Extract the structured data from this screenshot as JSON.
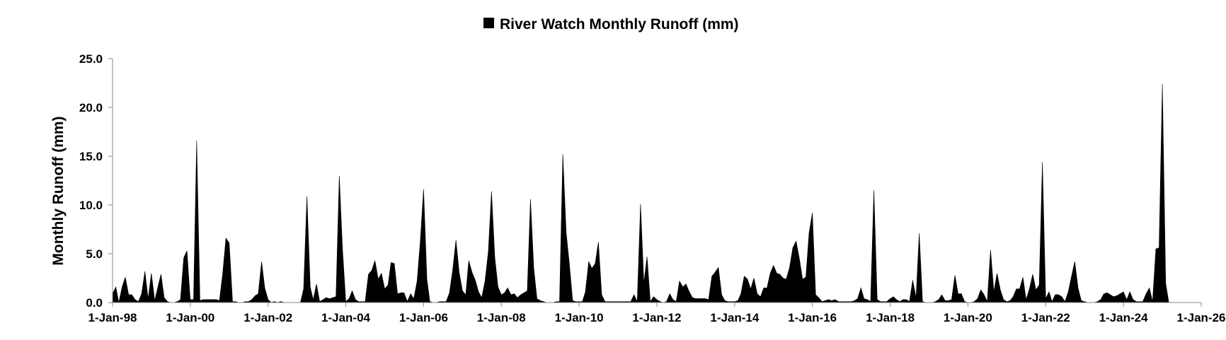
{
  "chart_data": {
    "type": "area",
    "title": "",
    "xlabel": "",
    "ylabel": "Monthly Runoff (mm)",
    "ylim": [
      0,
      25
    ],
    "y_ticks": [
      "0.0",
      "5.0",
      "10.0",
      "15.0",
      "20.0",
      "25.0"
    ],
    "x_range": [
      "1998-01-01",
      "2026-01-01"
    ],
    "x_ticks": [
      "1-Jan-98",
      "1-Jan-00",
      "1-Jan-02",
      "1-Jan-04",
      "1-Jan-06",
      "1-Jan-08",
      "1-Jan-10",
      "1-Jan-12",
      "1-Jan-14",
      "1-Jan-16",
      "1-Jan-18",
      "1-Jan-20",
      "1-Jan-22",
      "1-Jan-24",
      "1-Jan-26"
    ],
    "legend": {
      "position": "top-center"
    },
    "grid": false,
    "series": [
      {
        "name": "River Watch Monthly Runoff (mm)",
        "color": "#000000",
        "start": "1998-01",
        "values": [
          0.9,
          1.6,
          0.0,
          1.6,
          2.6,
          0.8,
          0.8,
          0.3,
          0.1,
          0.9,
          3.2,
          0.4,
          3.0,
          0.2,
          1.5,
          2.9,
          0.5,
          0.1,
          0.0,
          0.0,
          0.1,
          0.3,
          4.6,
          5.3,
          0.3,
          0.3,
          16.6,
          0.2,
          0.3,
          0.3,
          0.3,
          0.3,
          0.3,
          0.2,
          3.0,
          6.6,
          6.1,
          0.1,
          0.1,
          0.0,
          0.0,
          0.1,
          0.1,
          0.3,
          0.7,
          0.9,
          4.2,
          1.5,
          0.3,
          0.0,
          0.1,
          0.0,
          0.1,
          0.0,
          0.0,
          0.0,
          0.0,
          0.0,
          0.0,
          1.4,
          10.9,
          1.6,
          0.3,
          1.9,
          0.1,
          0.3,
          0.5,
          0.4,
          0.5,
          0.6,
          13.0,
          5.5,
          0.1,
          0.4,
          1.2,
          0.3,
          0.1,
          0.1,
          0.1,
          2.9,
          3.3,
          4.3,
          2.4,
          3.0,
          1.4,
          1.8,
          4.1,
          4.0,
          0.9,
          1.0,
          1.0,
          0.1,
          0.9,
          0.4,
          2.2,
          6.3,
          11.6,
          2.4,
          0.1,
          0.0,
          0.0,
          0.1,
          0.1,
          0.1,
          1.0,
          3.3,
          6.4,
          3.1,
          1.2,
          0.8,
          4.3,
          3.1,
          2.3,
          1.1,
          0.5,
          2.2,
          5.2,
          11.4,
          4.6,
          1.6,
          0.8,
          1.0,
          1.5,
          0.8,
          0.9,
          0.5,
          0.8,
          1.0,
          1.2,
          10.6,
          3.5,
          0.4,
          0.2,
          0.1,
          0.0,
          0.0,
          0.0,
          0.1,
          0.1,
          15.2,
          7.2,
          4.0,
          0.2,
          0.1,
          0.1,
          0.1,
          1.1,
          4.2,
          3.5,
          4.0,
          6.2,
          0.8,
          0.1,
          0.1,
          0.1,
          0.1,
          0.1,
          0.1,
          0.1,
          0.1,
          0.1,
          0.8,
          0.1,
          10.1,
          2.0,
          4.7,
          0.1,
          0.6,
          0.3,
          0.1,
          0.0,
          0.1,
          0.9,
          0.3,
          0.1,
          2.2,
          1.6,
          1.9,
          1.1,
          0.5,
          0.4,
          0.4,
          0.4,
          0.4,
          0.3,
          2.7,
          3.1,
          3.6,
          0.8,
          0.2,
          0.1,
          0.1,
          0.1,
          0.2,
          0.9,
          2.7,
          2.4,
          1.4,
          2.5,
          0.9,
          0.6,
          1.5,
          1.5,
          3.0,
          3.8,
          3.0,
          2.9,
          2.5,
          2.4,
          3.6,
          5.6,
          6.3,
          4.5,
          2.4,
          2.6,
          7.1,
          9.2,
          0.8,
          0.5,
          0.1,
          0.2,
          0.3,
          0.2,
          0.3,
          0.1,
          0.1,
          0.1,
          0.1,
          0.1,
          0.2,
          0.4,
          1.5,
          0.4,
          0.3,
          0.1,
          11.5,
          0.3,
          0.1,
          0.1,
          0.1,
          0.4,
          0.6,
          0.3,
          0.1,
          0.3,
          0.3,
          0.1,
          2.3,
          0.5,
          7.1,
          0.1,
          0.0,
          0.0,
          0.0,
          0.1,
          0.3,
          0.8,
          0.2,
          0.2,
          0.3,
          2.8,
          0.9,
          0.9,
          0.1,
          0.0,
          0.0,
          0.1,
          0.4,
          1.3,
          0.8,
          0.1,
          5.4,
          1.1,
          3.0,
          1.3,
          0.3,
          0.1,
          0.2,
          0.6,
          1.4,
          1.4,
          2.6,
          0.3,
          1.4,
          2.9,
          1.3,
          1.8,
          14.4,
          0.4,
          1.1,
          0.1,
          0.8,
          0.8,
          0.6,
          0.1,
          1.1,
          2.7,
          4.2,
          1.5,
          0.2,
          0.1,
          0.0,
          0.0,
          0.0,
          0.1,
          0.3,
          0.9,
          1.0,
          0.8,
          0.6,
          0.7,
          0.9,
          1.1,
          0.3,
          1.1,
          0.3,
          0.1,
          0.1,
          0.1,
          0.9,
          1.5,
          0.1,
          5.5,
          5.6,
          22.4,
          2.0,
          0.1
        ]
      }
    ]
  }
}
